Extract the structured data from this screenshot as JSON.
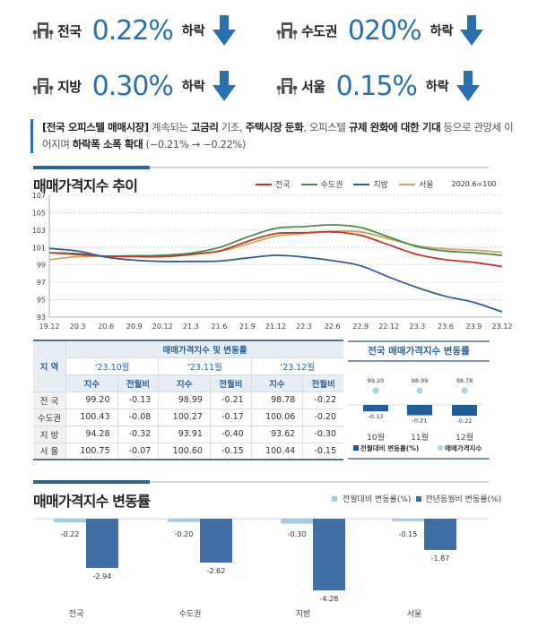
{
  "kpis": [
    {
      "region": "전국",
      "value": "0.22%",
      "direction": "하락",
      "icon": "building-icon",
      "arrow": "down-arrow-icon"
    },
    {
      "region": "수도권",
      "value": "020%",
      "direction": "하락",
      "icon": "building-icon",
      "arrow": "down-arrow-icon"
    },
    {
      "region": "지방",
      "value": "0.30%",
      "direction": "하락",
      "icon": "building-icon",
      "arrow": "down-arrow-icon"
    },
    {
      "region": "서울",
      "value": "0.15%",
      "direction": "하락",
      "icon": "building-icon",
      "arrow": "down-arrow-icon"
    }
  ],
  "note": {
    "p1": "[전국 오피스텔 매매시장]",
    "p2": " 계속되는 ",
    "p3": "고금리",
    "p4": " 기조, ",
    "p5": "주택시장 둔화",
    "p6": ", 오피스텔 ",
    "p7": "규제 완화에 대한 기대",
    "p8": " 등으로 관망세 이어지며 ",
    "p9": "하락폭 소폭 확대",
    "p10": " (−0.21% → −0.22%)"
  },
  "colors": {
    "accent": "#2a6fb0",
    "nationwide": "#c0392b",
    "capital": "#4a8a4e",
    "provinces": "#2f5d9a",
    "seoul": "#c9a75a",
    "mom_bar": "#9fcde6",
    "yoy_bar": "#3f6ea6",
    "mini_bar": "#1f5f99",
    "mini_dot": "#a8d4ec"
  },
  "chart_data": [
    {
      "type": "line",
      "title": "매매가격지수 추이",
      "base_note": "2020.6=100",
      "xlabel": "",
      "ylabel": "",
      "ylim": [
        93,
        107
      ],
      "yticks": [
        93,
        95,
        97,
        99,
        101,
        103,
        105,
        107
      ],
      "grid": true,
      "legend_position": "top-right",
      "x_tick_labels": [
        "19.12",
        "20.3",
        "20.6",
        "20.9",
        "20.12",
        "21.3",
        "21.6",
        "21.9",
        "21.12",
        "22.3",
        "22.6",
        "22.9",
        "22.12",
        "23.3",
        "23.6",
        "23.9",
        "23.12"
      ],
      "x": [
        "19.12",
        "20.3",
        "20.6",
        "20.9",
        "20.12",
        "21.3",
        "21.6",
        "21.9",
        "21.12",
        "22.3",
        "22.6",
        "22.9",
        "22.12",
        "23.3",
        "23.6",
        "23.9",
        "23.12"
      ],
      "series": [
        {
          "name": "전국",
          "values": [
            100.4,
            100.2,
            100.0,
            99.95,
            99.95,
            100.2,
            100.6,
            101.7,
            102.6,
            102.7,
            102.8,
            102.4,
            101.3,
            100.2,
            99.6,
            99.3,
            98.8
          ]
        },
        {
          "name": "수도권",
          "values": [
            100.4,
            100.3,
            100.0,
            100.05,
            100.1,
            100.35,
            101.0,
            102.2,
            103.2,
            103.4,
            103.6,
            103.3,
            102.2,
            101.1,
            100.6,
            100.4,
            100.1
          ]
        },
        {
          "name": "지방",
          "values": [
            100.9,
            100.6,
            99.9,
            99.55,
            99.4,
            99.4,
            99.45,
            99.8,
            100.1,
            99.9,
            99.5,
            98.9,
            97.6,
            96.4,
            95.4,
            94.7,
            93.6
          ]
        },
        {
          "name": "서울",
          "values": [
            99.6,
            99.95,
            100.0,
            100.05,
            100.1,
            100.3,
            100.55,
            101.4,
            102.3,
            102.6,
            102.85,
            102.8,
            102.0,
            101.2,
            100.85,
            100.7,
            100.45
          ]
        }
      ]
    },
    {
      "type": "bar",
      "title": "전국 매매가격지수 변동률",
      "categories": [
        "10월",
        "11월",
        "12월"
      ],
      "series": [
        {
          "name": "전월대비 변동률(%)",
          "values": [
            -0.13,
            -0.21,
            -0.22
          ]
        },
        {
          "name": "매매가격지수",
          "values": [
            99.2,
            98.99,
            98.78
          ]
        }
      ],
      "legend_position": "bottom"
    },
    {
      "type": "bar",
      "title": "매매가격지수 변동률",
      "categories": [
        "전국",
        "수도권",
        "지방",
        "서울"
      ],
      "series": [
        {
          "name": "전월대비 변동률(%)",
          "values": [
            -0.22,
            -0.2,
            -0.3,
            -0.15
          ]
        },
        {
          "name": "전년동월비 변동률(%)",
          "values": [
            -2.94,
            -2.62,
            -4.28,
            -1.87
          ]
        }
      ],
      "legend_position": "top-right"
    }
  ],
  "table": {
    "title": "매매가격지수 및 변동률",
    "region_header": "지 역",
    "periods": [
      "'23.10월",
      "'23.11월",
      "'23.12월"
    ],
    "sub_headers": [
      "지수",
      "전월비"
    ],
    "rows": [
      {
        "region": "전 국",
        "cells": [
          "99.20",
          "-0.13",
          "98.99",
          "-0.21",
          "98.78",
          "-0.22"
        ]
      },
      {
        "region": "수도권",
        "cells": [
          "100.43",
          "-0.08",
          "100.27",
          "-0.17",
          "100.06",
          "-0.20"
        ]
      },
      {
        "region": "지 방",
        "cells": [
          "94.28",
          "-0.32",
          "93.91",
          "-0.40",
          "93.62",
          "-0.30"
        ]
      },
      {
        "region": "서 울",
        "cells": [
          "100.75",
          "-0.07",
          "100.60",
          "-0.15",
          "100.44",
          "-0.15"
        ]
      }
    ]
  }
}
